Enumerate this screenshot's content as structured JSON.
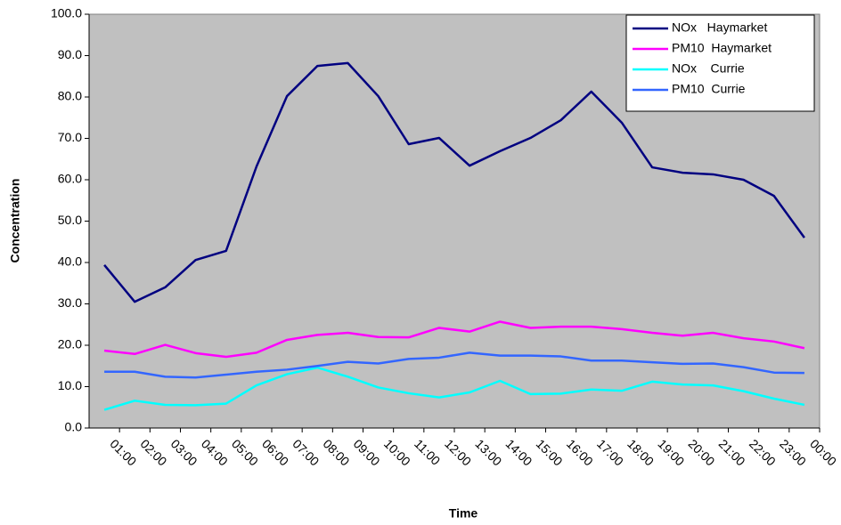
{
  "chart_data": {
    "type": "line",
    "x_label": "Time",
    "y_label": "Concentration",
    "categories": [
      "01:00",
      "02:00",
      "03:00",
      "04:00",
      "05:00",
      "06:00",
      "07:00",
      "08:00",
      "09:00",
      "10:00",
      "11:00",
      "12:00",
      "13:00",
      "14:00",
      "15:00",
      "16:00",
      "17:00",
      "18:00",
      "19:00",
      "20:00",
      "21:00",
      "22:00",
      "23:00",
      "00:00"
    ],
    "series": [
      {
        "name": "NOx   Haymarket",
        "color": "#000080",
        "values": [
          39.4,
          30.5,
          34,
          40.6,
          42.8,
          63.2,
          80.2,
          87.5,
          88.2,
          80.2,
          68.6,
          70.1,
          63.4,
          66.9,
          70.1,
          74.4,
          81.3,
          73.8,
          63,
          61.7,
          61.3,
          60,
          56.1,
          46
        ]
      },
      {
        "name": "PM10  Haymarket",
        "color": "#ff00ff",
        "values": [
          18.7,
          17.9,
          20.1,
          18.1,
          17.2,
          18.2,
          21.3,
          22.5,
          23,
          22,
          21.9,
          24.2,
          23.3,
          25.7,
          24.2,
          24.5,
          24.5,
          23.9,
          23,
          22.3,
          23,
          21.7,
          20.9,
          19.3
        ]
      },
      {
        "name": "NOx    Currie",
        "color": "#00ffff",
        "values": [
          4.4,
          6.6,
          5.6,
          5.5,
          5.9,
          10.3,
          13,
          14.6,
          12.4,
          9.8,
          8.4,
          7.4,
          8.6,
          11.4,
          8.2,
          8.3,
          9.3,
          9,
          11.2,
          10.5,
          10.3,
          8.9,
          7.1,
          5.6
        ]
      },
      {
        "name": "PM10  Currie",
        "color": "#3366ff",
        "values": [
          13.6,
          13.6,
          12.4,
          12.2,
          12.9,
          13.6,
          14.1,
          15,
          16,
          15.6,
          16.7,
          17,
          18.2,
          17.5,
          17.5,
          17.3,
          16.3,
          16.3,
          15.9,
          15.5,
          15.6,
          14.7,
          13.4,
          13.3
        ]
      }
    ],
    "ylim": [
      0,
      100
    ],
    "yticks": [
      {
        "value": 0,
        "label": "0.0"
      },
      {
        "value": 10,
        "label": "10.0"
      },
      {
        "value": 20,
        "label": "20.0"
      },
      {
        "value": 30,
        "label": "30.0"
      },
      {
        "value": 40,
        "label": "40.0"
      },
      {
        "value": 50,
        "label": "50.0"
      },
      {
        "value": 60,
        "label": "60.0"
      },
      {
        "value": 70,
        "label": "70.0"
      },
      {
        "value": 80,
        "label": "80.0"
      },
      {
        "value": 90,
        "label": "90.0"
      },
      {
        "value": 100,
        "label": "100.0"
      }
    ],
    "plot_background": "#c0c0c0",
    "legend": "top-right"
  }
}
